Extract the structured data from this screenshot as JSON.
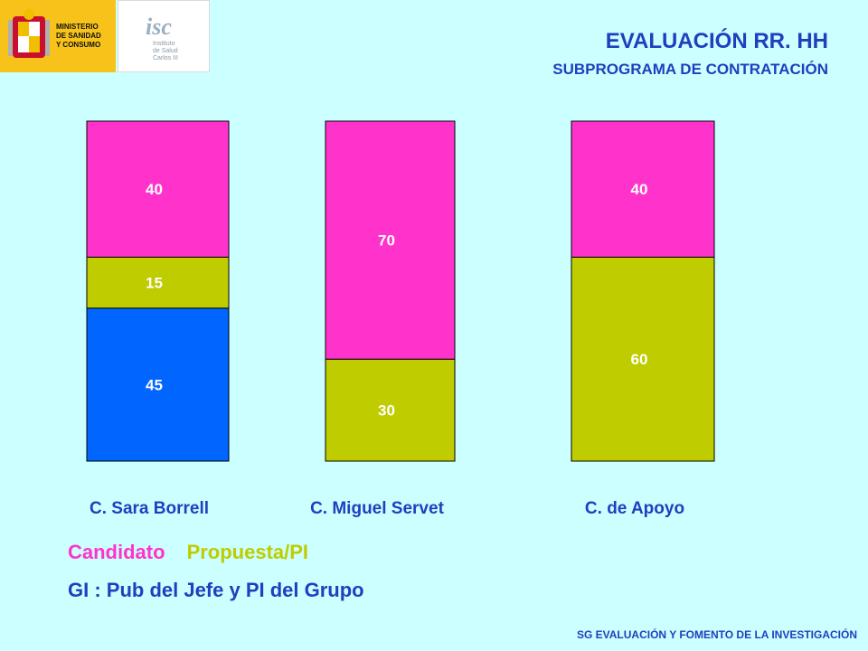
{
  "logos": {
    "ministry_text": "MINISTERIO\nDE SANIDAD\nY CONSUMO",
    "institute_mark": "isc",
    "institute_text": "Instituto\nde Salud\nCarlos III"
  },
  "header": {
    "title": "EVALUACIÓN RR. HH",
    "subtitle": "SUBPROGRAMA DE CONTRATACIÓN"
  },
  "chart_data": {
    "type": "bar",
    "stacked": true,
    "categories": [
      "C. Sara Borrell",
      "C. Miguel Servet",
      "C. de Apoyo"
    ],
    "series": [
      {
        "name": "GI",
        "color": "#0066ff",
        "values": [
          45,
          0,
          0
        ]
      },
      {
        "name": "Propuesta/PI",
        "color": "#bfcc00",
        "values": [
          15,
          30,
          60
        ]
      },
      {
        "name": "Candidato",
        "color": "#ff33cc",
        "values": [
          40,
          70,
          40
        ]
      }
    ],
    "ylim": [
      0,
      100
    ],
    "grid": false
  },
  "legend": {
    "candidato": {
      "label": "Candidato",
      "color": "#ff33cc"
    },
    "propuesta": {
      "label": "Propuesta/PI",
      "color": "#bfcc00"
    },
    "gi": {
      "label": "GI : Pub del Jefe y PI del Grupo",
      "color": "#1f3fbf"
    }
  },
  "footer": {
    "text": "SG EVALUACIÓN Y FOMENTO DE LA INVESTIGACIÓN"
  }
}
